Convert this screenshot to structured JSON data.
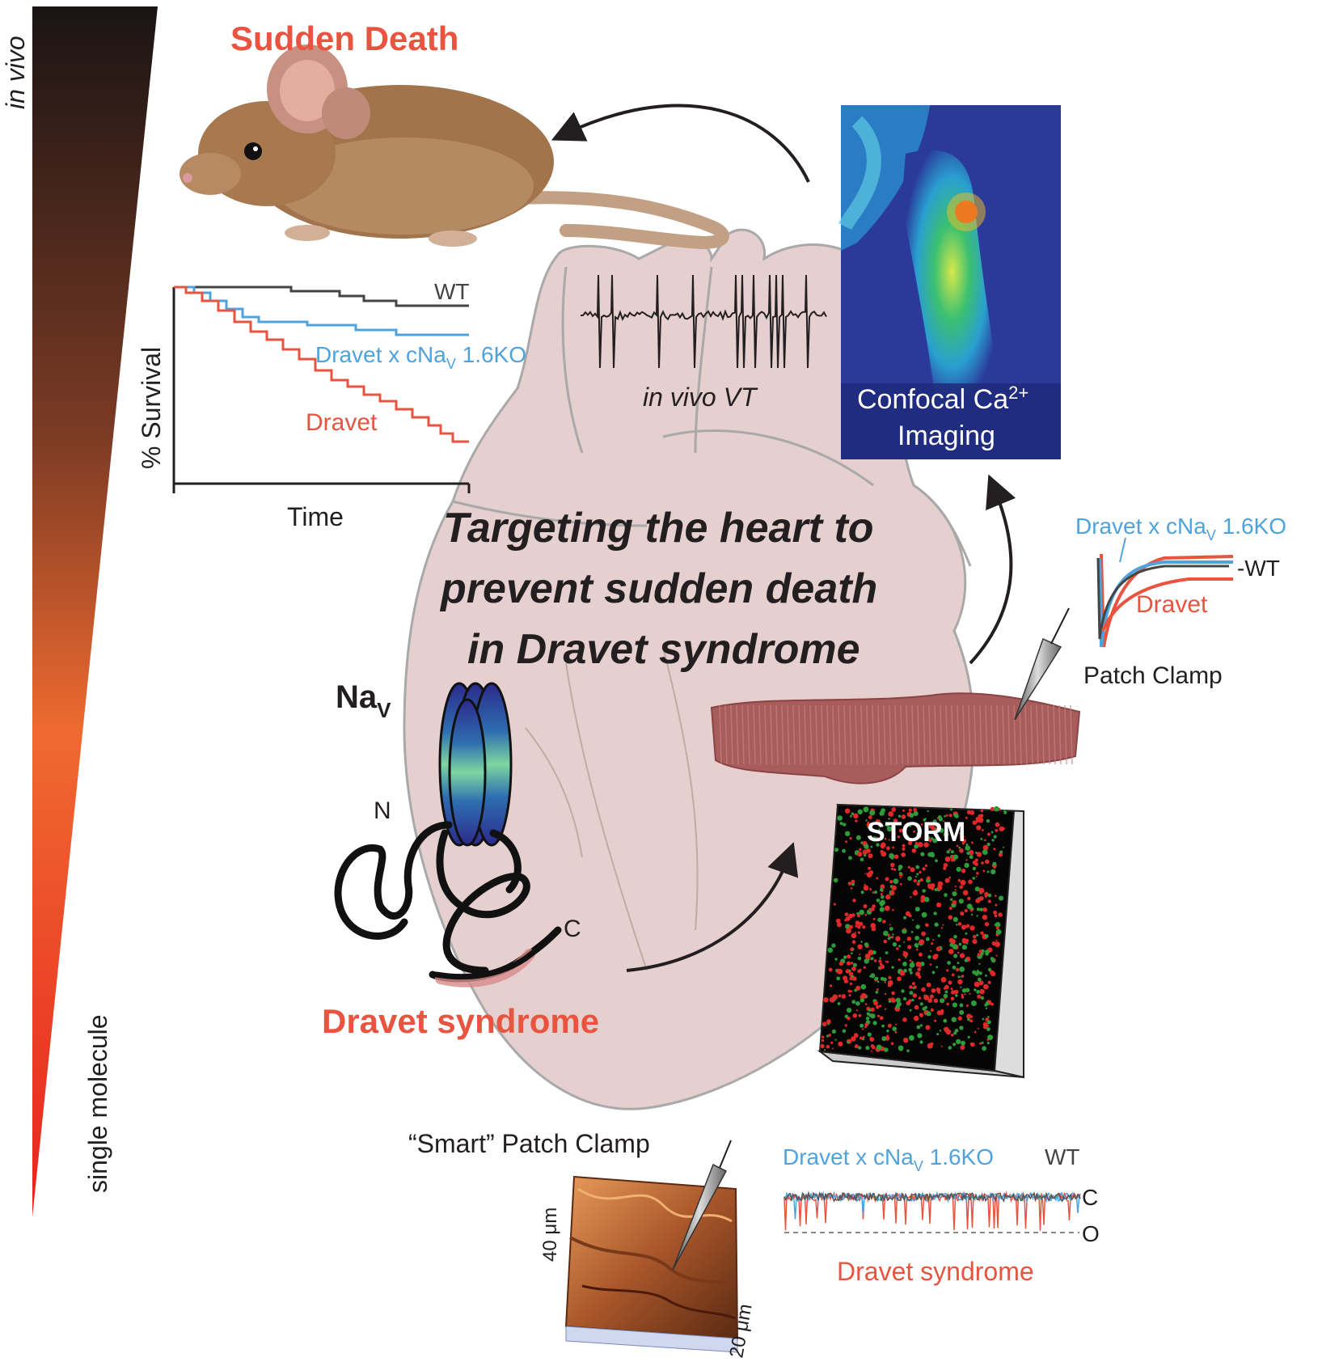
{
  "gradient_bar": {
    "top_label": "in vivo",
    "bottom_label": "single molecule"
  },
  "main_title": {
    "line1": "Targeting the heart to",
    "line2": "prevent sudden death",
    "line3": "in Dravet syndrome"
  },
  "sudden_death": {
    "label": "Sudden Death"
  },
  "survival_plot": {
    "ylabel": "% Survival",
    "xlabel": "Time",
    "series": [
      {
        "name": "WT",
        "color": "#444444"
      },
      {
        "name_prefix": "Dravet x cNa",
        "name_sub": "V",
        "name_suffix": " 1.6KO",
        "color": "#4fa3dd"
      },
      {
        "name": "Dravet",
        "color": "#e8543f"
      }
    ]
  },
  "ecg": {
    "label": "in vivo VT"
  },
  "confocal": {
    "line1_prefix": "Confocal Ca",
    "line1_sup": "2+",
    "line2": "Imaging"
  },
  "patch_clamp": {
    "label": "Patch Clamp",
    "legend_blue_prefix": "Dravet x cNa",
    "legend_blue_sub": "V",
    "legend_blue_suffix": " 1.6KO",
    "legend_wt": "-WT",
    "legend_red": "Dravet"
  },
  "nav_channel": {
    "label_main": "Na",
    "label_sub": "V",
    "n_label": "N",
    "c_label": "C",
    "disease_label": "Dravet syndrome"
  },
  "storm": {
    "label": "STORM"
  },
  "smart_patch": {
    "label": "“Smart” Patch Clamp",
    "axis_y": "40 μm",
    "axis_x": "20 μm",
    "legend_blue_prefix": "Dravet x cNa",
    "legend_blue_sub": "V",
    "legend_blue_suffix": " 1.6KO",
    "legend_wt": "WT",
    "closed_label": "C",
    "open_label": "O",
    "disease_label": "Dravet syndrome"
  },
  "colors": {
    "red": "#e8543f",
    "blue": "#4fa3dd",
    "wt": "#444444",
    "heart": "#e8d4d4",
    "myocyte": "#a85c5c"
  }
}
